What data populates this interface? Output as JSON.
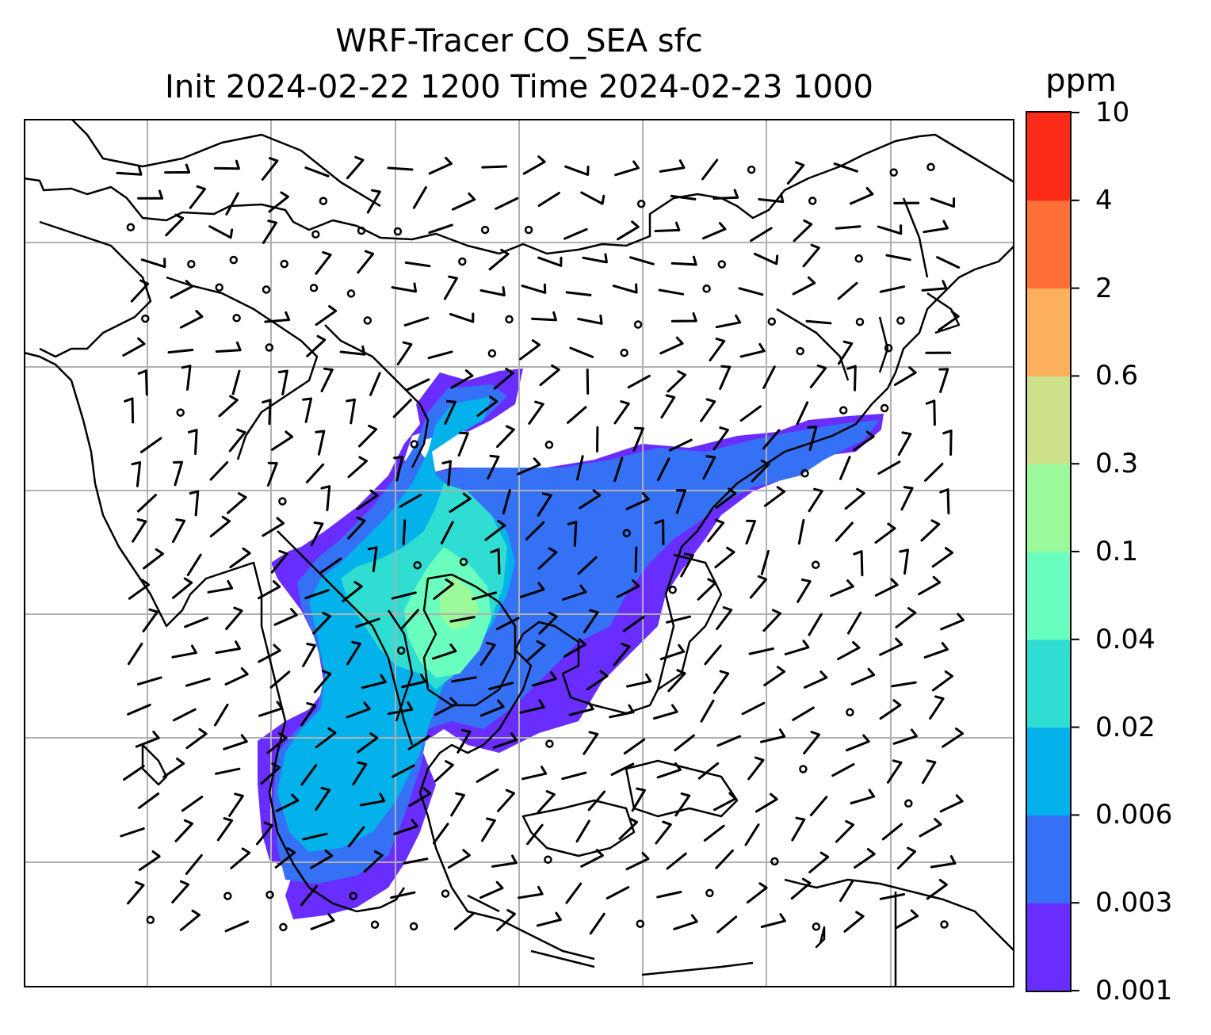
{
  "title": {
    "line1": "WRF-Tracer CO_SEA sfc",
    "line2": "Init 2024-02-22 1200 Time 2024-02-23 1000"
  },
  "colorbar": {
    "unit": "ppm",
    "levels": [
      "0.001",
      "0.003",
      "0.006",
      "0.02",
      "0.04",
      "0.1",
      "0.3",
      "0.6",
      "2",
      "4",
      "10"
    ],
    "colors": [
      "#6a2dff",
      "#3571f4",
      "#03b2ea",
      "#30ddd2",
      "#6bffbf",
      "#9bfa99",
      "#cde18a",
      "#feb05e",
      "#ff7038",
      "#fb2b17"
    ]
  },
  "map": {
    "gridlines": true,
    "grid_color": "#b0b0b0",
    "coastline_color": "#000000",
    "wind_barb_color": "#000000"
  }
}
